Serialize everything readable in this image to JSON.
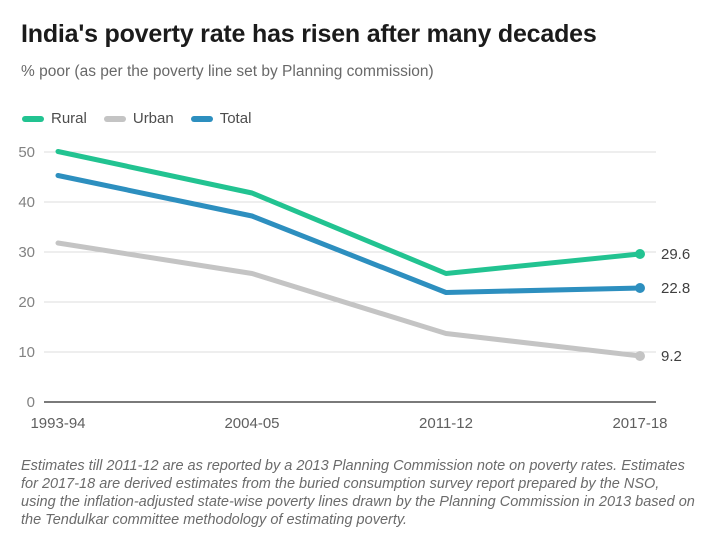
{
  "header": {
    "title": "India's poverty rate has risen after many decades",
    "subtitle": "% poor (as per the poverty line set by Planning commission)"
  },
  "legend": [
    {
      "label": "Rural",
      "color": "#22c391"
    },
    {
      "label": "Urban",
      "color": "#c4c4c4"
    },
    {
      "label": "Total",
      "color": "#2d8fbf"
    }
  ],
  "chart_data": {
    "type": "line",
    "categories": [
      "1993-94",
      "2004-05",
      "2011-12",
      "2017-18"
    ],
    "series": [
      {
        "name": "Rural",
        "color": "#22c391",
        "values": [
          50.1,
          41.8,
          25.7,
          29.6
        ],
        "end_label": "29.6"
      },
      {
        "name": "Urban",
        "color": "#c4c4c4",
        "values": [
          31.8,
          25.7,
          13.7,
          9.2
        ],
        "end_label": "9.2"
      },
      {
        "name": "Total",
        "color": "#2d8fbf",
        "values": [
          45.3,
          37.2,
          21.9,
          22.8
        ],
        "end_label": "22.8"
      }
    ],
    "yticks": [
      0,
      10,
      20,
      30,
      40,
      50
    ],
    "ylim": [
      0,
      50
    ],
    "grid": true,
    "legend_position": "top-left",
    "xlabel": "",
    "ylabel": ""
  },
  "footnote": "Estimates till 2011-12 are as reported by a 2013 Planning Commission note on poverty rates. Estimates for 2017-18 are derived estimates from the buried consumption survey report prepared by the NSO, using the inflation-adjusted state-wise poverty lines drawn by the Planning Commission in 2013 based on the Tendulkar committee methodology of estimating poverty."
}
